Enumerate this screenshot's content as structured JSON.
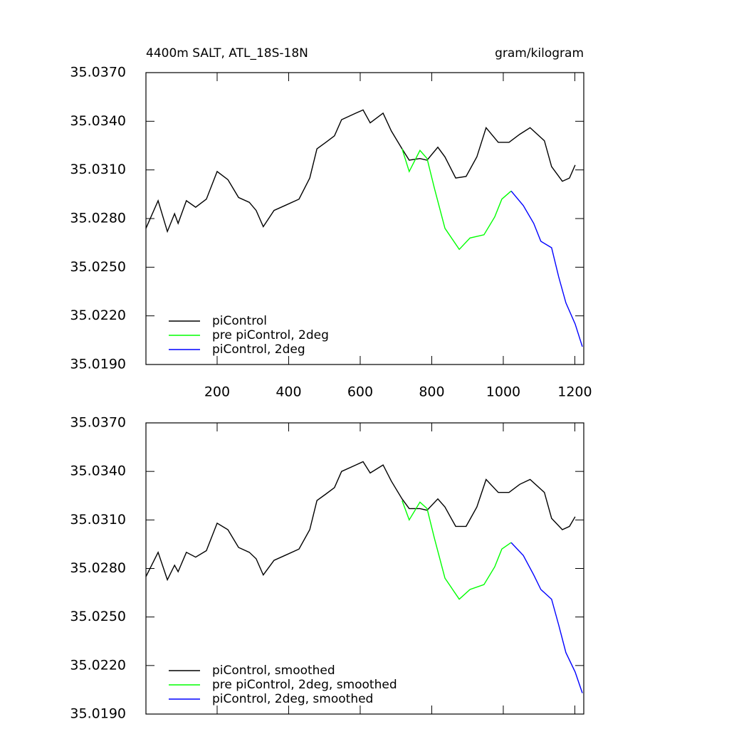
{
  "chart_data": [
    {
      "type": "line",
      "title": "4400m SALT, ATL_18S-18N",
      "subtitle": "gram/kilogram",
      "xlim": [
        1,
        1225
      ],
      "ylim": [
        35.019,
        35.037
      ],
      "xticks": [
        200,
        400,
        600,
        800,
        1000,
        1200
      ],
      "show_xtick_labels": true,
      "yticks": [
        {
          "value": 35.037,
          "label": "35.0370"
        },
        {
          "value": 35.034,
          "label": "35.0340"
        },
        {
          "value": 35.031,
          "label": "35.0310"
        },
        {
          "value": 35.028,
          "label": "35.0280"
        },
        {
          "value": 35.025,
          "label": "35.0250"
        },
        {
          "value": 35.022,
          "label": "35.0220"
        },
        {
          "value": 35.019,
          "label": "35.0190"
        }
      ],
      "legend": "lower-left",
      "series": [
        {
          "name": "piControl",
          "color": "#000000",
          "x": [
            1,
            35,
            61,
            81,
            91,
            114,
            140,
            170,
            200,
            230,
            260,
            290,
            309,
            329,
            359,
            389,
            429,
            459,
            479,
            504,
            528,
            548,
            588,
            608,
            628,
            664,
            687,
            717,
            737,
            767,
            787,
            817,
            837,
            867,
            896,
            926,
            952,
            986,
            1016,
            1046,
            1075,
            1115,
            1135,
            1165,
            1185,
            1201
          ],
          "values": [
            35.0274,
            35.0291,
            35.0272,
            35.0283,
            35.0277,
            35.0291,
            35.0287,
            35.0292,
            35.0309,
            35.0304,
            35.0293,
            35.029,
            35.0285,
            35.0275,
            35.0285,
            35.0288,
            35.0292,
            35.0305,
            35.0323,
            35.0327,
            35.0331,
            35.0341,
            35.0345,
            35.0347,
            35.0339,
            35.0345,
            35.0334,
            35.0323,
            35.0316,
            35.0317,
            35.0316,
            35.0324,
            35.0318,
            35.0305,
            35.0306,
            35.0318,
            35.0336,
            35.0327,
            35.0327,
            35.0332,
            35.0336,
            35.0328,
            35.0312,
            35.0303,
            35.0305,
            35.0313
          ]
        },
        {
          "name": "pre piControl, 2deg",
          "color": "#00ff00",
          "x": [
            717,
            737,
            767,
            787,
            807,
            837,
            877,
            907,
            946,
            976,
            996,
            1022
          ],
          "values": [
            35.0323,
            35.0309,
            35.0322,
            35.0317,
            35.0299,
            35.0274,
            35.0261,
            35.0268,
            35.027,
            35.0281,
            35.0292,
            35.0297
          ]
        },
        {
          "name": "piControl, 2deg",
          "color": "#0000ff",
          "x": [
            1022,
            1056,
            1085,
            1105,
            1135,
            1155,
            1175,
            1201,
            1221
          ],
          "values": [
            35.0297,
            35.0288,
            35.0277,
            35.0266,
            35.0262,
            35.0244,
            35.0228,
            35.0215,
            35.0201
          ]
        }
      ]
    },
    {
      "type": "line",
      "xlim": [
        1,
        1225
      ],
      "ylim": [
        35.019,
        35.037
      ],
      "xticks": [
        200,
        400,
        600,
        800,
        1000,
        1200
      ],
      "show_xtick_labels": false,
      "yticks": [
        {
          "value": 35.037,
          "label": "35.0370"
        },
        {
          "value": 35.034,
          "label": "35.0340"
        },
        {
          "value": 35.031,
          "label": "35.0310"
        },
        {
          "value": 35.028,
          "label": "35.0280"
        },
        {
          "value": 35.025,
          "label": "35.0250"
        },
        {
          "value": 35.022,
          "label": "35.0220"
        },
        {
          "value": 35.019,
          "label": "35.0190"
        }
      ],
      "legend": "lower-left",
      "series": [
        {
          "name": "piControl, smoothed",
          "color": "#000000",
          "x": [
            1,
            35,
            61,
            81,
            91,
            114,
            140,
            170,
            200,
            230,
            260,
            290,
            309,
            329,
            359,
            389,
            429,
            459,
            479,
            504,
            528,
            548,
            588,
            608,
            628,
            664,
            687,
            717,
            737,
            767,
            787,
            817,
            837,
            867,
            896,
            926,
            952,
            986,
            1016,
            1046,
            1075,
            1115,
            1135,
            1165,
            1185,
            1201
          ],
          "values": [
            35.0275,
            35.029,
            35.0273,
            35.0282,
            35.0278,
            35.029,
            35.0287,
            35.0291,
            35.0308,
            35.0304,
            35.0293,
            35.029,
            35.0286,
            35.0276,
            35.0285,
            35.0288,
            35.0292,
            35.0304,
            35.0322,
            35.0326,
            35.033,
            35.034,
            35.0344,
            35.0346,
            35.0339,
            35.0344,
            35.0334,
            35.0323,
            35.0317,
            35.0317,
            35.0316,
            35.0323,
            35.0318,
            35.0306,
            35.0306,
            35.0318,
            35.0335,
            35.0327,
            35.0327,
            35.0332,
            35.0335,
            35.0327,
            35.0311,
            35.0304,
            35.0306,
            35.0312
          ]
        },
        {
          "name": "pre piControl, 2deg, smoothed",
          "color": "#00ff00",
          "x": [
            717,
            737,
            767,
            787,
            807,
            837,
            877,
            907,
            946,
            976,
            996,
            1022
          ],
          "values": [
            35.0322,
            35.031,
            35.0321,
            35.0317,
            35.0299,
            35.0274,
            35.0261,
            35.0267,
            35.027,
            35.0281,
            35.0292,
            35.0296
          ]
        },
        {
          "name": "piControl, 2deg, smoothed",
          "color": "#0000ff",
          "x": [
            1022,
            1056,
            1085,
            1105,
            1135,
            1155,
            1175,
            1201,
            1221
          ],
          "values": [
            35.0296,
            35.0288,
            35.0276,
            35.0267,
            35.0261,
            35.0245,
            35.0228,
            35.0216,
            35.0203
          ]
        }
      ]
    }
  ]
}
